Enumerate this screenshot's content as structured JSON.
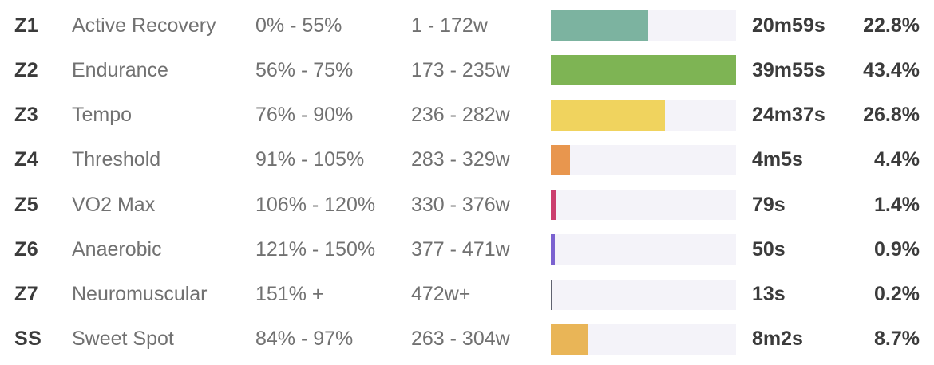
{
  "colors": {
    "background": "#ffffff",
    "bar_track": "#f4f3f9",
    "zone_code_text": "#3b3b3b",
    "zone_detail_text": "#717171",
    "value_text": "#3b3b3b"
  },
  "chart_data": {
    "type": "bar",
    "orientation": "horizontal",
    "bars_scaled_to_max_percent": true,
    "max_percent_value": 43.4,
    "categories": [
      "Z1",
      "Z2",
      "Z3",
      "Z4",
      "Z5",
      "Z6",
      "Z7",
      "SS"
    ],
    "values": [
      22.8,
      43.4,
      26.8,
      4.4,
      1.4,
      0.9,
      0.2,
      8.7
    ],
    "rows": [
      {
        "code": "Z1",
        "name": "Active Recovery",
        "percent_range": "0% - 55%",
        "watt_range": "1 - 172w",
        "time": "20m59s",
        "percent": 22.8,
        "percent_label": "22.8%",
        "color": "#7cb3a0"
      },
      {
        "code": "Z2",
        "name": "Endurance",
        "percent_range": "56% - 75%",
        "watt_range": "173 - 235w",
        "time": "39m55s",
        "percent": 43.4,
        "percent_label": "43.4%",
        "color": "#7eb454"
      },
      {
        "code": "Z3",
        "name": "Tempo",
        "percent_range": "76% - 90%",
        "watt_range": "236 - 282w",
        "time": "24m37s",
        "percent": 26.8,
        "percent_label": "26.8%",
        "color": "#f0d35e"
      },
      {
        "code": "Z4",
        "name": "Threshold",
        "percent_range": "91% - 105%",
        "watt_range": "283 - 329w",
        "time": "4m5s",
        "percent": 4.4,
        "percent_label": "4.4%",
        "color": "#e8964e"
      },
      {
        "code": "Z5",
        "name": "VO2 Max",
        "percent_range": "106% - 120%",
        "watt_range": "330 - 376w",
        "time": "79s",
        "percent": 1.4,
        "percent_label": "1.4%",
        "color": "#cb3d6e"
      },
      {
        "code": "Z6",
        "name": "Anaerobic",
        "percent_range": "121% - 150%",
        "watt_range": "377 - 471w",
        "time": "50s",
        "percent": 0.9,
        "percent_label": "0.9%",
        "color": "#7b62d0"
      },
      {
        "code": "Z7",
        "name": "Neuromuscular",
        "percent_range": "151% +",
        "watt_range": "472w+",
        "time": "13s",
        "percent": 0.2,
        "percent_label": "0.2%",
        "color": "#5f6270"
      },
      {
        "code": "SS",
        "name": "Sweet Spot",
        "percent_range": "84% - 97%",
        "watt_range": "263 - 304w",
        "time": "8m2s",
        "percent": 8.7,
        "percent_label": "8.7%",
        "color": "#e9b557"
      }
    ]
  }
}
